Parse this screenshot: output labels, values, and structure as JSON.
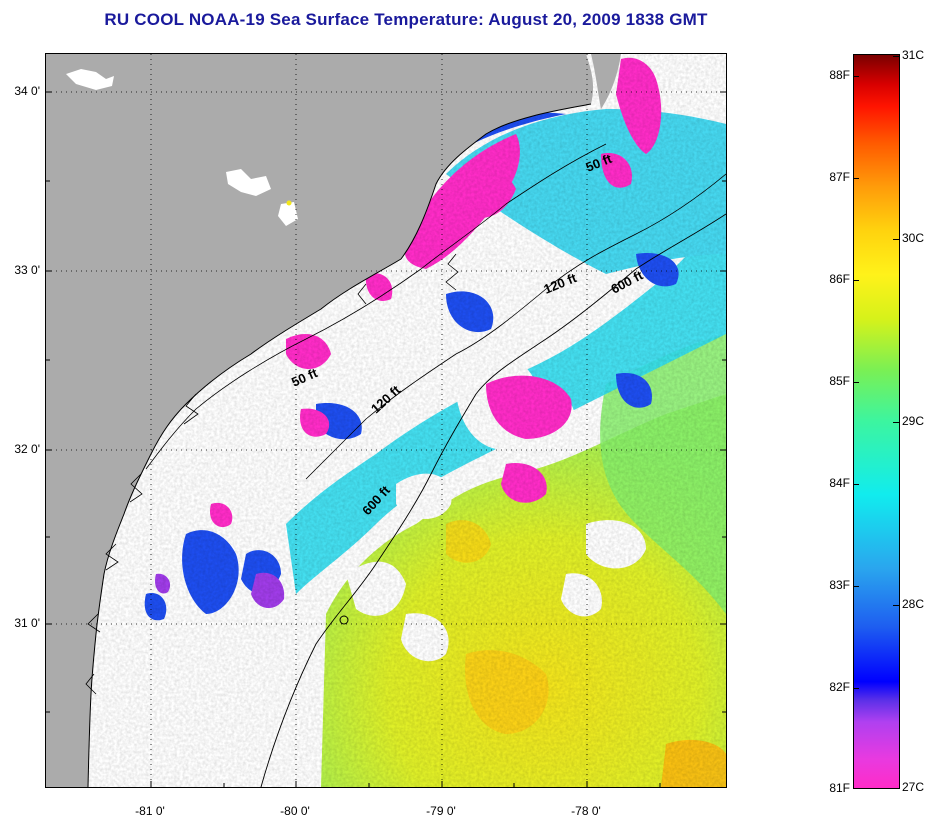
{
  "title": "RU COOL  NOAA-19  Sea Surface Temperature:  August 20, 2009 1838 GMT",
  "map": {
    "lat_ticks": [
      "34 0'",
      "33 0'",
      "32 0'",
      "31 0'"
    ],
    "lon_ticks": [
      "-81 0'",
      "-80 0'",
      "-79 0'",
      "-78 0'"
    ],
    "contour_labels": [
      "50 ft",
      "50 ft",
      "120 ft",
      "120 ft",
      "600 ft",
      "600 ft"
    ],
    "colors": {
      "land": "#ababab",
      "cloud": "#ffffff",
      "cool_magenta": "#ff2cc8",
      "blue": "#1e5ef0",
      "cyan": "#22d8ee",
      "green": "#6cef7a",
      "yellow": "#f3f01a",
      "orange": "#ffbf10"
    }
  },
  "colorbar": {
    "fahrenheit": [
      "88F",
      "87F",
      "86F",
      "85F",
      "84F",
      "83F",
      "82F",
      "81F"
    ],
    "celsius": [
      "31C",
      "30C",
      "29C",
      "28C",
      "27C"
    ]
  }
}
